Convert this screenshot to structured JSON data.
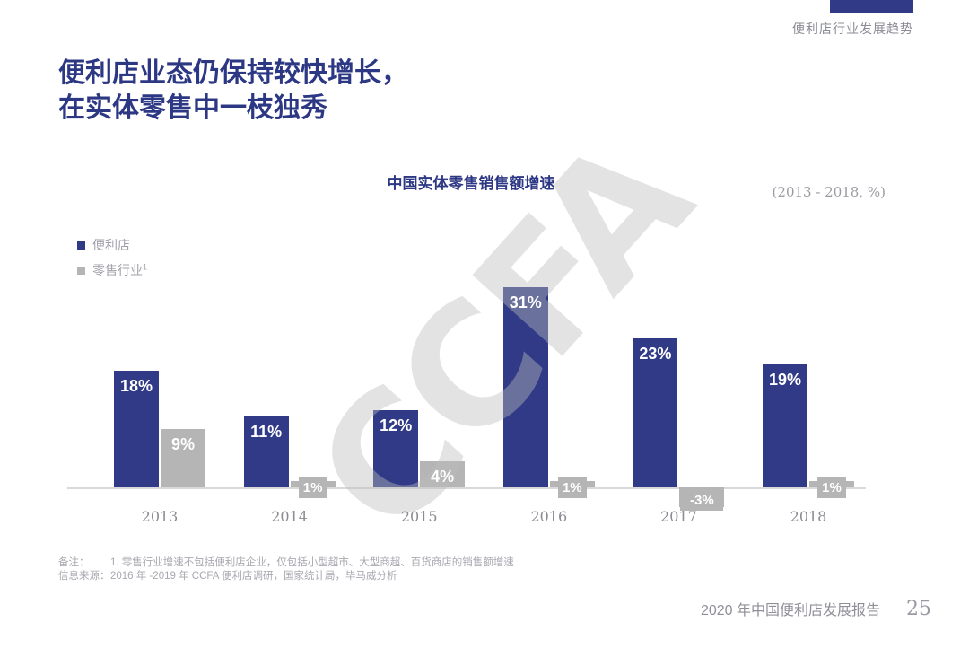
{
  "header": {
    "tag": "便利店行业发展趋势"
  },
  "title": {
    "line1": "便利店业态仍保持较快增长，",
    "line2": "在实体零售中一枝独秀"
  },
  "watermark": "CCFA",
  "chart_data": {
    "type": "bar",
    "title": "中国实体零售销售额增速",
    "subtitle": "(2013 - 2018, %)",
    "categories": [
      "2013",
      "2014",
      "2015",
      "2016",
      "2017",
      "2018"
    ],
    "series": [
      {
        "name": "便利店",
        "superscript": "",
        "color": "#303a87",
        "values": [
          18,
          11,
          12,
          31,
          23,
          19
        ]
      },
      {
        "name": "零售行业",
        "superscript": "1",
        "color": "#b5b5b5",
        "values": [
          9,
          1,
          4,
          1,
          -3,
          1
        ]
      }
    ],
    "unit": "%",
    "ylim": [
      -3,
      31
    ],
    "grid": false,
    "legend_position": "top-left",
    "baseline_color": "#d9d9d9"
  },
  "notes": {
    "note1_label": "备注：",
    "note1_text": "1. 零售行业增速不包括便利店企业，仅包括小型超市、大型商超、百货商店的销售额增速",
    "note2_label": "信息来源：",
    "note2_text": "2016 年 -2019 年 CCFA 便利店调研，国家统计局，毕马威分析"
  },
  "footer": {
    "report_title": "2020 年中国便利店发展报告",
    "page_number": "25"
  },
  "colors": {
    "accent_blue": "#303a87",
    "bar_gray": "#b5b5b5",
    "title_blue": "#2d3884",
    "muted_text": "#8b8b93"
  }
}
